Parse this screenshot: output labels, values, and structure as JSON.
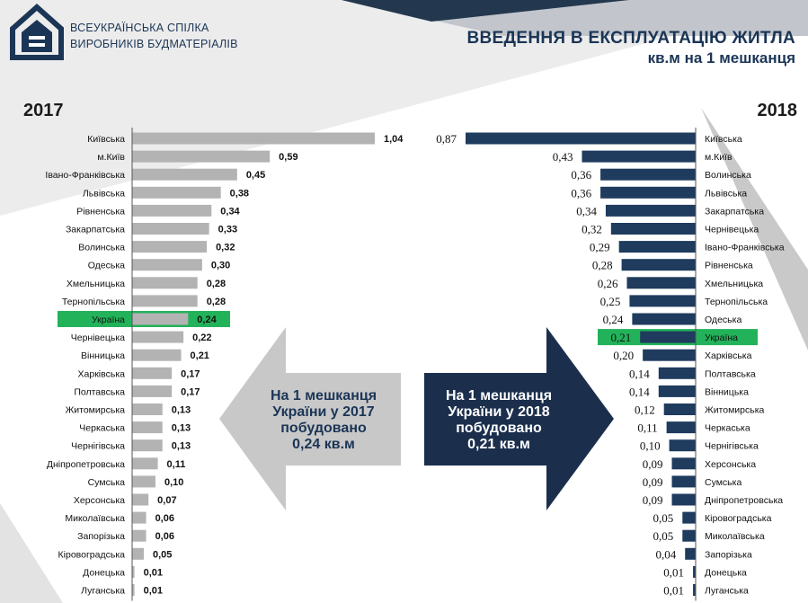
{
  "brand": {
    "line1": "ВСЕУКРАЇНСЬКА СПІЛКА",
    "line2": "ВИРОБНИКІВ БУДМАТЕРІАЛІВ"
  },
  "header": {
    "title": "ВВЕДЕННЯ В ЕКСПЛУАТАЦІЮ ЖИТЛА",
    "subtitle": "кв.м на 1 мешканця"
  },
  "colors": {
    "bar2017": "#b3b3b3",
    "bar2018": "#1f3b5e",
    "highlight": "#22b35a",
    "arrow_left": "#c8c8c8",
    "arrow_right": "#1b2f4d",
    "navy": "#1b3556"
  },
  "callouts": {
    "left": [
      "На 1 мешканця",
      "України у 2017",
      "побудовано",
      "0,24 кв.м"
    ],
    "right": [
      "На 1 мешканця",
      "України у 2018",
      "побудовано",
      "0,21 кв.м"
    ]
  },
  "chart_data": [
    {
      "type": "bar",
      "orientation": "horizontal",
      "title": "2017",
      "highlight": "Україна",
      "categories": [
        "Київська",
        "м.Київ",
        "Івано-Франківська",
        "Львівська",
        "Рівненська",
        "Закарпатська",
        "Волинська",
        "Одеська",
        "Хмельницька",
        "Тернопільська",
        "Україна",
        "Чернівецька",
        "Вінницька",
        "Харківська",
        "Полтавська",
        "Житомирська",
        "Черкаська",
        "Чернігівська",
        "Дніпропетровська",
        "Сумська",
        "Херсонська",
        "Миколаївська",
        "Запорізька",
        "Кіровоградська",
        "Донецька",
        "Луганська"
      ],
      "values": [
        1.04,
        0.59,
        0.45,
        0.38,
        0.34,
        0.33,
        0.32,
        0.3,
        0.28,
        0.28,
        0.24,
        0.22,
        0.21,
        0.17,
        0.17,
        0.13,
        0.13,
        0.13,
        0.11,
        0.1,
        0.07,
        0.06,
        0.06,
        0.05,
        0.01,
        0.01
      ],
      "labels": [
        "1,04",
        "0,59",
        "0,45",
        "0,38",
        "0,34",
        "0,33",
        "0,32",
        "0,30",
        "0,28",
        "0,28",
        "0,24",
        "0,22",
        "0,21",
        "0,17",
        "0,17",
        "0,13",
        "0,13",
        "0,13",
        "0,11",
        "0,10",
        "0,07",
        "0,06",
        "0,06",
        "0,05",
        "0,01",
        "0,01"
      ]
    },
    {
      "type": "bar",
      "orientation": "horizontal",
      "title": "2018",
      "highlight": "Україна",
      "categories": [
        "Київська",
        "м.Київ",
        "Волинська",
        "Львівська",
        "Закарпатська",
        "Чернівецька",
        "Івано-Франківська",
        "Рівненська",
        "Хмельницька",
        "Тернопільська",
        "Одеська",
        "Україна",
        "Харківська",
        "Полтавська",
        "Вінницька",
        "Житомирська",
        "Черкаська",
        "Чернігівська",
        "Херсонська",
        "Сумська",
        "Дніпропетровська",
        "Кіровоградська",
        "Миколаївська",
        "Запорізька",
        "Донецька",
        "Луганська"
      ],
      "values": [
        0.87,
        0.43,
        0.36,
        0.36,
        0.34,
        0.32,
        0.29,
        0.28,
        0.26,
        0.25,
        0.24,
        0.21,
        0.2,
        0.14,
        0.14,
        0.12,
        0.11,
        0.1,
        0.09,
        0.09,
        0.09,
        0.05,
        0.05,
        0.04,
        0.01,
        0.01
      ],
      "labels": [
        "0,87",
        "0,43",
        "0,36",
        "0,36",
        "0,34",
        "0,32",
        "0,29",
        "0,28",
        "0,26",
        "0,25",
        "0,24",
        "0,21",
        "0,20",
        "0,14",
        "0,14",
        "0,12",
        "0,11",
        "0,10",
        "0,09",
        "0,09",
        "0,09",
        "0,05",
        "0,05",
        "0,04",
        "0,01",
        "0,01"
      ]
    }
  ]
}
